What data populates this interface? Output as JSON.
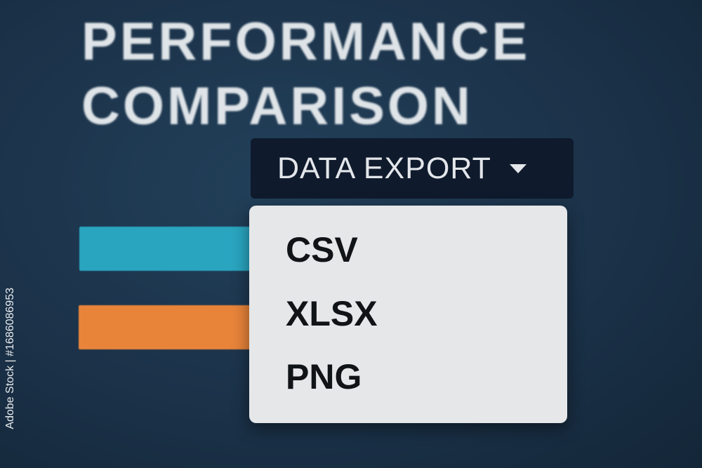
{
  "header": {
    "title_line1": "PERFORMANCE",
    "title_line2": "COMPARISON"
  },
  "bars": [
    {
      "color": "#2aa5c0"
    },
    {
      "color": "#e8843a"
    }
  ],
  "export": {
    "label": "DATA EXPORT",
    "icon": "caret-down-icon",
    "expanded": true,
    "options": [
      "CSV",
      "XLSX",
      "PNG"
    ]
  },
  "watermark": "Adobe Stock | #1686086953"
}
